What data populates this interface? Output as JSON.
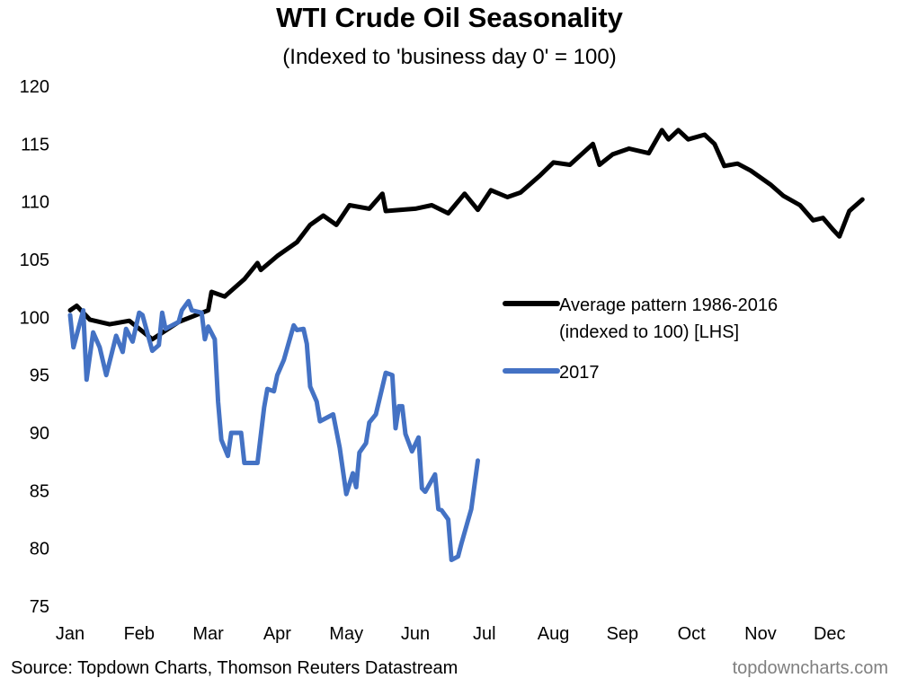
{
  "chart_data": {
    "type": "line",
    "title": "WTI Crude Oil Seasonality",
    "subtitle": "(Indexed to 'business day 0' = 100)",
    "xlabel": "",
    "ylabel": "",
    "ylim": [
      75,
      120
    ],
    "yticks": [
      120,
      115,
      110,
      105,
      100,
      95,
      90,
      85,
      80,
      75
    ],
    "xtick_labels": [
      "Jan",
      "Feb",
      "Mar",
      "Apr",
      "May",
      "Jun",
      "Jul",
      "Aug",
      "Sep",
      "Oct",
      "Nov",
      "Dec"
    ],
    "grid": false,
    "legend_placement": "center-right",
    "series": [
      {
        "name_line1": "Average pattern 1986-2016",
        "name_line2": "(indexed to 100) [LHS]",
        "color": "#000000",
        "x": [
          0,
          2,
          6,
          12,
          18,
          25,
          33,
          42,
          43,
          47,
          53,
          57,
          58,
          63,
          69,
          73,
          77,
          81,
          85,
          91,
          95,
          96,
          105,
          110,
          115,
          120,
          124,
          128,
          133,
          137,
          143,
          147,
          152,
          159,
          161,
          165,
          170,
          176,
          180,
          182,
          185,
          188,
          193,
          196,
          199,
          203,
          207,
          213,
          217,
          222,
          226,
          229,
          232,
          234,
          237,
          241
        ],
        "y": [
          100.6,
          101,
          99.8,
          99.4,
          99.7,
          98.1,
          99.6,
          100.6,
          102.2,
          101.8,
          103.3,
          104.7,
          104.1,
          105.3,
          106.5,
          108,
          108.8,
          108,
          109.7,
          109.4,
          110.7,
          109.2,
          109.4,
          109.7,
          109,
          110.7,
          109.3,
          111,
          110.4,
          110.8,
          112.3,
          113.4,
          113.2,
          115,
          113.2,
          114.1,
          114.6,
          114.2,
          116.2,
          115.4,
          116.2,
          115.4,
          115.8,
          115,
          113.1,
          113.3,
          112.7,
          111.5,
          110.5,
          109.7,
          108.4,
          108.6,
          107.6,
          107,
          109.2,
          110.2
        ]
      },
      {
        "name": "2017",
        "color": "#4472C4",
        "x": [
          0,
          1,
          4,
          5,
          7,
          9,
          11,
          14,
          16,
          17,
          19,
          21,
          22,
          25,
          27,
          28,
          29,
          33,
          34,
          36,
          37,
          40,
          41,
          42,
          44,
          45,
          46,
          48,
          49,
          52,
          53,
          57,
          59,
          60,
          62,
          63,
          65,
          68,
          69,
          71,
          72,
          73,
          75,
          76,
          80,
          82,
          84,
          86,
          87,
          88,
          90,
          91,
          93,
          96,
          98,
          99,
          100,
          101,
          102,
          104,
          106,
          107,
          108,
          111,
          112,
          113,
          115,
          116,
          118,
          119,
          121,
          122,
          124
        ],
        "y": [
          100.2,
          97.4,
          100.6,
          94.6,
          98.7,
          97.4,
          95,
          98.4,
          97,
          99,
          97.9,
          100.4,
          100.2,
          97.1,
          97.6,
          100.4,
          99,
          99.6,
          100.6,
          101.4,
          100.6,
          100.4,
          98.1,
          99.2,
          98.1,
          92.7,
          89.4,
          88,
          90,
          90,
          87.4,
          87.4,
          92.2,
          93.8,
          93.6,
          95,
          96.3,
          99.3,
          98.9,
          99,
          97.7,
          94,
          92.7,
          91,
          91.6,
          88.7,
          84.7,
          86.5,
          85.3,
          88.3,
          89.1,
          90.9,
          91.6,
          95.2,
          95,
          90.4,
          92.3,
          92.3,
          89.9,
          88.4,
          89.6,
          85.2,
          84.9,
          86.4,
          83.4,
          83.3,
          82.5,
          79,
          79.3,
          80.4,
          82.4,
          83.4,
          87.6
        ]
      }
    ]
  },
  "footer": {
    "source": "Source: Topdown Charts, Thomson Reuters Datastream",
    "brand": "topdowncharts.com"
  }
}
